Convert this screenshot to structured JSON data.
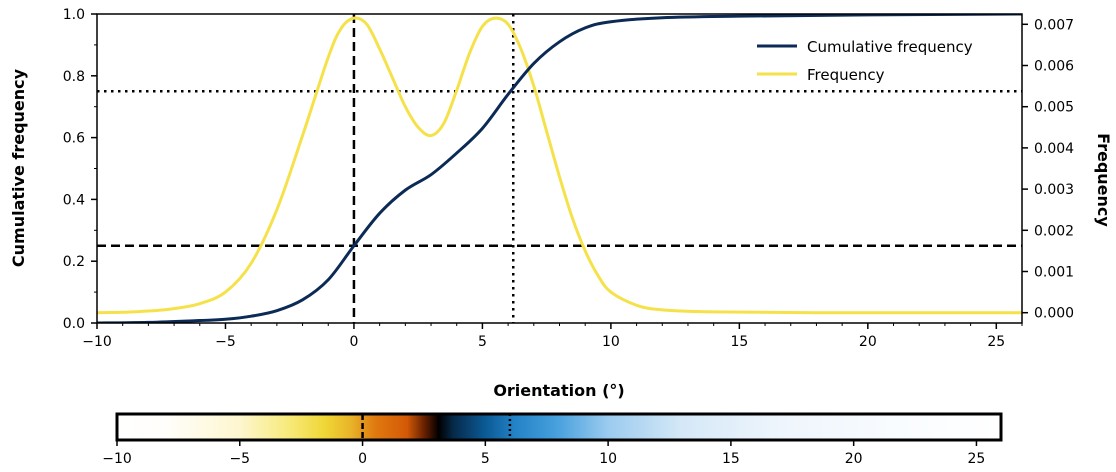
{
  "chart_data": {
    "type": "line",
    "xlabel": "Orientation (°)",
    "ylabel_left": "Cumulative frequency",
    "ylabel_right": "Frequency",
    "xlim": [
      -10,
      26
    ],
    "ylim_left": [
      0,
      1.0
    ],
    "ylim_right": [
      -0.00025,
      0.00725
    ],
    "x_ticks": [
      -10,
      -5,
      0,
      5,
      10,
      15,
      20,
      25
    ],
    "x_tick_labels": [
      "−10",
      "−5",
      "0",
      "5",
      "10",
      "15",
      "20",
      "25"
    ],
    "y_left_ticks": [
      0.0,
      0.2,
      0.4,
      0.6,
      0.8,
      1.0
    ],
    "y_left_tick_labels": [
      "0.0",
      "0.2",
      "0.4",
      "0.6",
      "0.8",
      "1.0"
    ],
    "y_right_ticks": [
      0.0,
      0.001,
      0.002,
      0.003,
      0.004,
      0.005,
      0.006,
      0.007
    ],
    "y_right_tick_labels": [
      "0.000",
      "0.001",
      "0.002",
      "0.003",
      "0.004",
      "0.005",
      "0.006",
      "0.007"
    ],
    "legend_position": "top-right",
    "series": [
      {
        "name": "Cumulative frequency",
        "axis": "left",
        "color": "#0b2a55",
        "x": [
          -10,
          -8,
          -6,
          -5,
          -4,
          -3,
          -2,
          -1,
          0,
          1,
          2,
          3,
          4,
          5,
          6,
          7,
          8,
          9,
          10,
          12,
          15,
          20,
          26
        ],
        "y": [
          0.0,
          0.002,
          0.008,
          0.012,
          0.022,
          0.04,
          0.075,
          0.14,
          0.25,
          0.355,
          0.43,
          0.48,
          0.55,
          0.63,
          0.74,
          0.84,
          0.91,
          0.955,
          0.975,
          0.988,
          0.993,
          0.997,
          1.0
        ]
      },
      {
        "name": "Frequency",
        "axis": "right",
        "color": "#f5e24a",
        "x": [
          -10,
          -9,
          -8,
          -7,
          -6,
          -5,
          -4,
          -3,
          -2,
          -1,
          -0.5,
          0,
          0.5,
          1,
          1.5,
          2,
          2.5,
          3,
          3.5,
          4,
          4.5,
          5,
          5.5,
          6,
          6.5,
          7,
          7.5,
          8,
          8.5,
          9,
          9.5,
          10,
          11,
          12,
          14,
          18,
          26
        ],
        "y": [
          0.0,
          1e-05,
          4e-05,
          0.0001,
          0.00022,
          0.0005,
          0.0012,
          0.0025,
          0.0043,
          0.0062,
          0.0069,
          0.00715,
          0.007,
          0.0064,
          0.0057,
          0.005,
          0.0045,
          0.0043,
          0.0046,
          0.0054,
          0.0063,
          0.00695,
          0.00715,
          0.007,
          0.0064,
          0.0055,
          0.0044,
          0.0033,
          0.0023,
          0.0015,
          0.0009,
          0.0005,
          0.00018,
          7e-05,
          2e-05,
          0.0,
          0.0
        ]
      }
    ],
    "reference_lines": [
      {
        "orientation": "vertical",
        "x": 0,
        "style": "dashed",
        "color": "#000000"
      },
      {
        "orientation": "vertical",
        "x": 6.2,
        "style": "dotted",
        "color": "#000000"
      },
      {
        "orientation": "horizontal",
        "y": 0.25,
        "axis": "left",
        "style": "dashed",
        "color": "#000000"
      },
      {
        "orientation": "horizontal",
        "y": 0.75,
        "axis": "left",
        "style": "dotted",
        "color": "#000000"
      }
    ],
    "colorbar": {
      "xlim": [
        -10,
        26
      ],
      "x_ticks": [
        -10,
        -5,
        0,
        5,
        10,
        15,
        20,
        25
      ],
      "x_tick_labels": [
        "−10",
        "−5",
        "0",
        "5",
        "10",
        "15",
        "20",
        "25"
      ],
      "markers": [
        {
          "x": 0,
          "style": "dashed"
        },
        {
          "x": 6,
          "style": "dotted"
        }
      ],
      "color_stops": [
        {
          "x": -10,
          "color": "#ffffff"
        },
        {
          "x": -8,
          "color": "#fffefa"
        },
        {
          "x": -5,
          "color": "#fdf6cf"
        },
        {
          "x": -3,
          "color": "#f7ea7a"
        },
        {
          "x": -1.5,
          "color": "#efd535"
        },
        {
          "x": -0.5,
          "color": "#e9b52a"
        },
        {
          "x": 0.5,
          "color": "#e07a10"
        },
        {
          "x": 1.8,
          "color": "#d45a06"
        },
        {
          "x": 2.6,
          "color": "#5a1a02"
        },
        {
          "x": 3.1,
          "color": "#000000"
        },
        {
          "x": 3.7,
          "color": "#062a4a"
        },
        {
          "x": 5,
          "color": "#0b5a95"
        },
        {
          "x": 6.2,
          "color": "#2382c6"
        },
        {
          "x": 8,
          "color": "#4aa2de"
        },
        {
          "x": 10,
          "color": "#9bcbef"
        },
        {
          "x": 13,
          "color": "#d5e8f7"
        },
        {
          "x": 17,
          "color": "#eef5fc"
        },
        {
          "x": 22,
          "color": "#f9fcff"
        },
        {
          "x": 26,
          "color": "#ffffff"
        }
      ]
    }
  }
}
